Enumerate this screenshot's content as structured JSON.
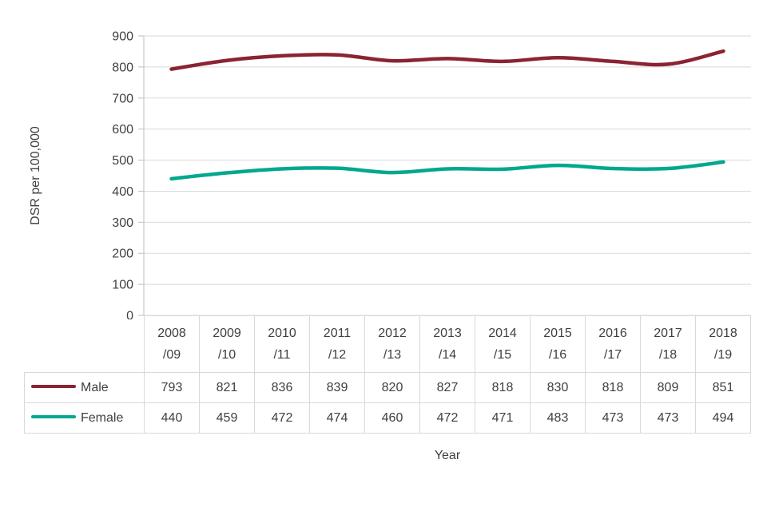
{
  "chart_data": {
    "type": "line",
    "title": "",
    "categories": [
      "2008/09",
      "2009/10",
      "2010/11",
      "2011/12",
      "2012/13",
      "2013/14",
      "2014/15",
      "2015/16",
      "2016/17",
      "2017/18",
      "2018/19"
    ],
    "series": [
      {
        "name": "Male",
        "color": "#8b2332",
        "values": [
          793,
          821,
          836,
          839,
          820,
          827,
          818,
          830,
          818,
          809,
          851
        ]
      },
      {
        "name": "Female",
        "color": "#00a88e",
        "values": [
          440,
          459,
          472,
          474,
          460,
          472,
          471,
          483,
          473,
          473,
          494
        ]
      }
    ],
    "xlabel": "Year",
    "ylabel": "DSR per 100,000",
    "ylim": [
      0,
      900
    ],
    "ytick_step": 100,
    "grid": true,
    "legend_position": "table-rows-left",
    "colors": {
      "grid": "#d9d9d9",
      "axis": "#bfbfbf",
      "text": "#404040"
    }
  }
}
